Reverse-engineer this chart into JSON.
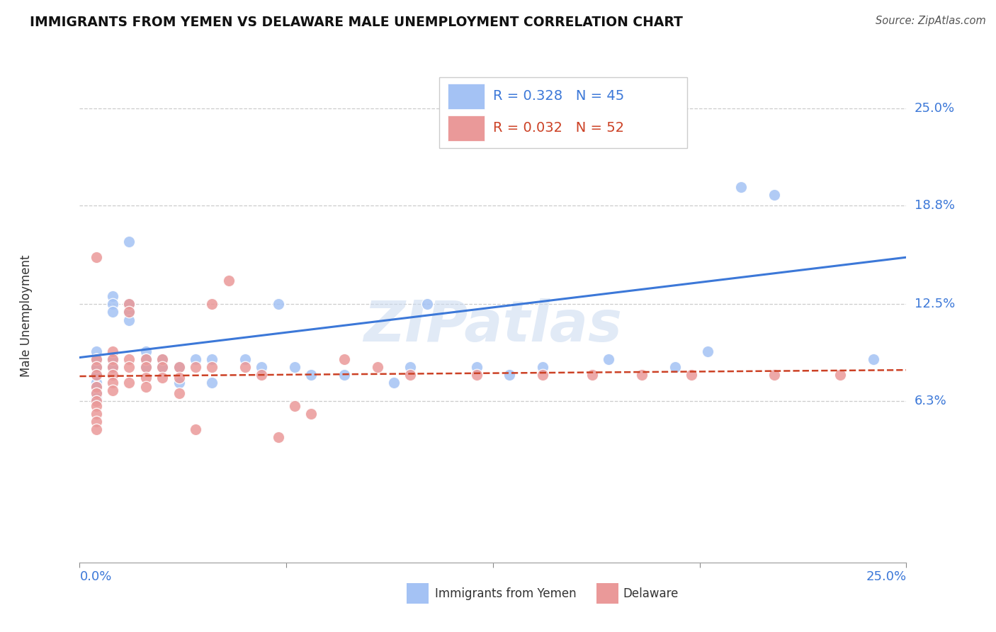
{
  "title": "IMMIGRANTS FROM YEMEN VS DELAWARE MALE UNEMPLOYMENT CORRELATION CHART",
  "source": "Source: ZipAtlas.com",
  "ylabel": "Male Unemployment",
  "yticks": [
    0.063,
    0.125,
    0.188,
    0.25
  ],
  "ytick_labels": [
    "6.3%",
    "12.5%",
    "18.8%",
    "25.0%"
  ],
  "xmin": 0.0,
  "xmax": 0.25,
  "ymin": -0.04,
  "ymax": 0.275,
  "blue_color": "#a4c2f4",
  "pink_color": "#ea9999",
  "blue_line_color": "#3c78d8",
  "pink_line_color": "#cc4125",
  "watermark": "ZIPatlas",
  "blue_scatter_x": [
    0.005,
    0.005,
    0.005,
    0.005,
    0.005,
    0.005,
    0.005,
    0.005,
    0.01,
    0.01,
    0.01,
    0.01,
    0.01,
    0.015,
    0.015,
    0.015,
    0.015,
    0.02,
    0.02,
    0.02,
    0.025,
    0.025,
    0.03,
    0.03,
    0.035,
    0.04,
    0.04,
    0.05,
    0.055,
    0.06,
    0.065,
    0.07,
    0.08,
    0.095,
    0.1,
    0.105,
    0.12,
    0.13,
    0.14,
    0.16,
    0.18,
    0.19,
    0.2,
    0.21,
    0.24
  ],
  "blue_scatter_y": [
    0.095,
    0.09,
    0.085,
    0.08,
    0.075,
    0.072,
    0.068,
    0.065,
    0.13,
    0.125,
    0.12,
    0.09,
    0.085,
    0.165,
    0.125,
    0.12,
    0.115,
    0.095,
    0.09,
    0.085,
    0.09,
    0.085,
    0.085,
    0.075,
    0.09,
    0.09,
    0.075,
    0.09,
    0.085,
    0.125,
    0.085,
    0.08,
    0.08,
    0.075,
    0.085,
    0.125,
    0.085,
    0.08,
    0.085,
    0.09,
    0.085,
    0.095,
    0.2,
    0.195,
    0.09
  ],
  "pink_scatter_x": [
    0.005,
    0.005,
    0.005,
    0.005,
    0.005,
    0.005,
    0.005,
    0.005,
    0.005,
    0.005,
    0.005,
    0.01,
    0.01,
    0.01,
    0.01,
    0.01,
    0.01,
    0.015,
    0.015,
    0.015,
    0.015,
    0.015,
    0.02,
    0.02,
    0.02,
    0.02,
    0.025,
    0.025,
    0.025,
    0.03,
    0.03,
    0.03,
    0.035,
    0.035,
    0.04,
    0.04,
    0.045,
    0.05,
    0.055,
    0.06,
    0.065,
    0.07,
    0.08,
    0.09,
    0.1,
    0.12,
    0.14,
    0.155,
    0.17,
    0.185,
    0.21,
    0.23
  ],
  "pink_scatter_y": [
    0.155,
    0.09,
    0.085,
    0.08,
    0.072,
    0.068,
    0.063,
    0.06,
    0.055,
    0.05,
    0.045,
    0.095,
    0.09,
    0.085,
    0.08,
    0.075,
    0.07,
    0.125,
    0.12,
    0.09,
    0.085,
    0.075,
    0.09,
    0.085,
    0.078,
    0.072,
    0.09,
    0.085,
    0.078,
    0.085,
    0.078,
    0.068,
    0.085,
    0.045,
    0.125,
    0.085,
    0.14,
    0.085,
    0.08,
    0.04,
    0.06,
    0.055,
    0.09,
    0.085,
    0.08,
    0.08,
    0.08,
    0.08,
    0.08,
    0.08,
    0.08,
    0.08
  ],
  "blue_line_x0": 0.0,
  "blue_line_y0": 0.091,
  "blue_line_x1": 0.25,
  "blue_line_y1": 0.155,
  "pink_line_x0": 0.0,
  "pink_line_y0": 0.079,
  "pink_line_x1": 0.25,
  "pink_line_y1": 0.083,
  "legend_label1": "R = 0.328   N = 45",
  "legend_label2": "R = 0.032   N = 52"
}
